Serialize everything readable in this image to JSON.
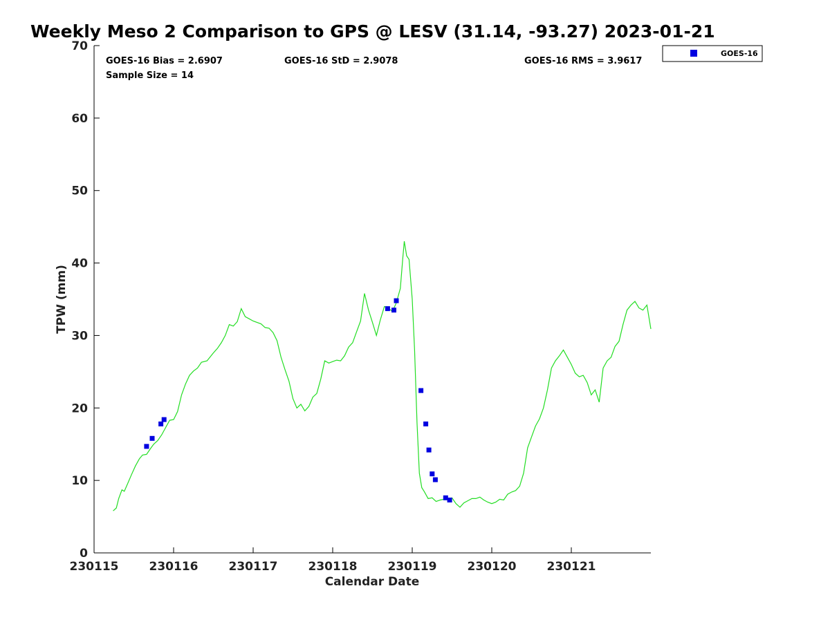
{
  "chart_data": {
    "type": "scatter",
    "title": "Weekly Meso 2 Comparison to GPS @ LESV (31.14, -93.27) 2023-01-21",
    "xlabel": "Calendar Date",
    "ylabel": "TPW (mm)",
    "xlim": [
      230115,
      230122
    ],
    "ylim": [
      0,
      70
    ],
    "x_ticks": [
      230115,
      230116,
      230117,
      230118,
      230119,
      230120,
      230121
    ],
    "x_tick_labels": [
      "230115",
      "230116",
      "230117",
      "230118",
      "230119",
      "230120",
      "230121"
    ],
    "y_ticks": [
      0,
      10,
      20,
      30,
      40,
      50,
      60,
      70
    ],
    "y_tick_labels": [
      "0",
      "10",
      "20",
      "30",
      "40",
      "50",
      "60",
      "70"
    ],
    "stats": {
      "bias": "GOES-16 Bias = 2.6907",
      "std": "GOES-16 StD = 2.9078",
      "rms": "GOES-16 RMS = 3.9617",
      "sample": "Sample Size = 14"
    },
    "legend": {
      "label": "GOES-16",
      "placement": "top-right outside"
    },
    "colors": {
      "goes": "#0000e0",
      "gps": "#22dd22"
    },
    "series": [
      {
        "name": "GPS",
        "kind": "line",
        "x": [
          230115.24,
          230115.28,
          230115.31,
          230115.35,
          230115.38,
          230115.42,
          230115.47,
          230115.52,
          230115.57,
          230115.61,
          230115.66,
          230115.71,
          230115.75,
          230115.8,
          230115.85,
          230115.9,
          230115.95,
          230116.0,
          230116.05,
          230116.1,
          230116.15,
          230116.2,
          230116.25,
          230116.3,
          230116.35,
          230116.42,
          230116.5,
          230116.55,
          230116.6,
          230116.65,
          230116.7,
          230116.75,
          230116.8,
          230116.85,
          230116.9,
          230116.95,
          230117.0,
          230117.1,
          230117.15,
          230117.2,
          230117.25,
          230117.3,
          230117.35,
          230117.4,
          230117.45,
          230117.5,
          230117.55,
          230117.6,
          230117.65,
          230117.7,
          230117.75,
          230117.8,
          230117.85,
          230117.9,
          230117.95,
          230118.0,
          230118.05,
          230118.1,
          230118.15,
          230118.2,
          230118.25,
          230118.3,
          230118.35,
          230118.4,
          230118.45,
          230118.5,
          230118.55,
          230118.6,
          230118.65,
          230118.7,
          230118.75,
          230118.8,
          230118.85,
          230118.88,
          230118.9,
          230118.93,
          230118.96,
          230119.0,
          230119.03,
          230119.06,
          230119.09,
          230119.12,
          230119.15,
          230119.2,
          230119.25,
          230119.3,
          230119.35,
          230119.4,
          230119.45,
          230119.5,
          230119.55,
          230119.6,
          230119.65,
          230119.7,
          230119.75,
          230119.8,
          230119.85,
          230119.9,
          230119.95,
          230120.0,
          230120.05,
          230120.1,
          230120.15,
          230120.2,
          230120.25,
          230120.3,
          230120.35,
          230120.4,
          230120.45,
          230120.5,
          230120.55,
          230120.6,
          230120.65,
          230120.7,
          230120.75,
          230120.8,
          230120.85,
          230120.9,
          230120.95,
          230121.0,
          230121.05,
          230121.1,
          230121.15,
          230121.2,
          230121.25,
          230121.3,
          230121.35,
          230121.4,
          230121.45,
          230121.5,
          230121.55,
          230121.6,
          230121.65,
          230121.7,
          230121.75,
          230121.8,
          230121.85,
          230121.9,
          230121.95,
          230122.0
        ],
        "y": [
          5.8,
          6.2,
          7.5,
          8.7,
          8.5,
          9.5,
          10.8,
          12.0,
          13.0,
          13.5,
          13.6,
          14.4,
          15.0,
          15.5,
          16.3,
          17.3,
          18.3,
          18.4,
          19.5,
          21.8,
          23.3,
          24.5,
          25.1,
          25.5,
          26.3,
          26.5,
          27.6,
          28.2,
          29.0,
          30.0,
          31.5,
          31.3,
          31.9,
          33.7,
          32.6,
          32.3,
          32.0,
          31.6,
          31.1,
          31.0,
          30.4,
          29.3,
          27.0,
          25.3,
          23.7,
          21.3,
          20.0,
          20.5,
          19.6,
          20.2,
          21.5,
          22.0,
          24.0,
          26.5,
          26.2,
          26.4,
          26.6,
          26.5,
          27.2,
          28.4,
          29.0,
          30.5,
          32.0,
          35.8,
          33.5,
          31.8,
          30.0,
          32.2,
          34.0,
          33.8,
          33.3,
          34.5,
          36.5,
          40.5,
          43.0,
          41.0,
          40.5,
          35.0,
          28.0,
          18.0,
          11.0,
          9.0,
          8.5,
          7.5,
          7.6,
          7.1,
          7.3,
          7.4,
          7.4,
          7.6,
          6.8,
          6.3,
          6.9,
          7.2,
          7.5,
          7.5,
          7.7,
          7.3,
          7.0,
          6.8,
          7.0,
          7.4,
          7.3,
          8.1,
          8.4,
          8.6,
          9.2,
          11.0,
          14.5,
          16.0,
          17.5,
          18.5,
          20.0,
          22.5,
          25.5,
          26.5,
          27.2,
          28.0,
          27.0,
          26.0,
          24.8,
          24.3,
          24.5,
          23.5,
          21.8,
          22.5,
          20.8,
          25.5,
          26.5,
          27.0,
          28.5,
          29.2,
          31.5,
          33.5,
          34.2,
          34.7,
          33.8,
          33.5,
          34.2,
          30.9
        ]
      },
      {
        "name": "GOES-16",
        "kind": "scatter",
        "x": [
          230115.66,
          230115.73,
          230115.84,
          230115.88,
          230118.69,
          230118.77,
          230118.8,
          230119.11,
          230119.17,
          230119.21,
          230119.25,
          230119.29,
          230119.42,
          230119.47
        ],
        "y": [
          14.7,
          15.8,
          17.8,
          18.4,
          33.7,
          33.5,
          34.8,
          22.4,
          17.8,
          14.2,
          10.9,
          10.1,
          7.6,
          7.3
        ]
      }
    ]
  }
}
